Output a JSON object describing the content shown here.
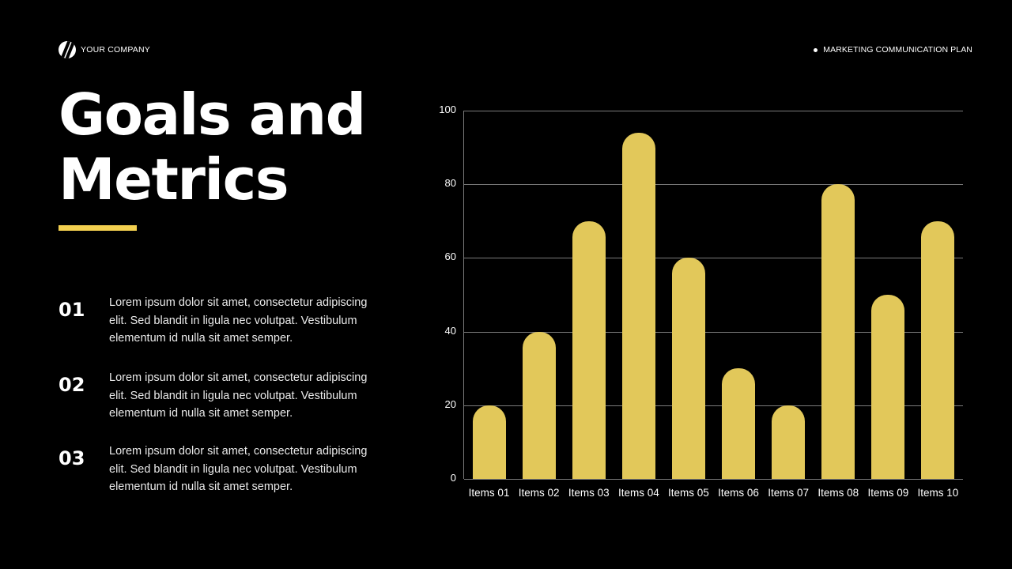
{
  "header": {
    "company": "YOUR COMPANY",
    "plan": "MARKETING COMMUNICATION PLAN"
  },
  "title": {
    "line1": "Goals and",
    "line2": "Metrics"
  },
  "colors": {
    "background": "#000000",
    "accent": "#f2cf4f",
    "bar": "#e2c85a",
    "gridline": "#7a7a7a"
  },
  "points": [
    {
      "num": "01",
      "text": "Lorem ipsum dolor sit amet, consectetur adipiscing elit. Sed blandit in ligula nec volutpat.  Vestibulum elementum id nulla sit amet semper."
    },
    {
      "num": "02",
      "text": "Lorem ipsum dolor sit amet, consectetur adipiscing elit. Sed blandit in ligula nec volutpat.  Vestibulum elementum id nulla sit amet semper."
    },
    {
      "num": "03",
      "text": "Lorem ipsum dolor sit amet, consectetur adipiscing elit. Sed blandit in ligula nec volutpat.  Vestibulum elementum id nulla sit amet semper."
    }
  ],
  "chart_data": {
    "type": "bar",
    "title": "",
    "xlabel": "",
    "ylabel": "",
    "categories": [
      "Items 01",
      "Items 02",
      "Items 03",
      "Items 04",
      "Items 05",
      "Items 06",
      "Items 07",
      "Items 08",
      "Items 09",
      "Items 10"
    ],
    "values": [
      20,
      40,
      70,
      94,
      60,
      30,
      20,
      80,
      50,
      70
    ],
    "ylim": [
      0,
      100
    ],
    "yticks": [
      "0",
      "20",
      "40",
      "60",
      "80",
      "100"
    ],
    "grid": true,
    "legend": "none",
    "bar_style": "rounded-top"
  }
}
